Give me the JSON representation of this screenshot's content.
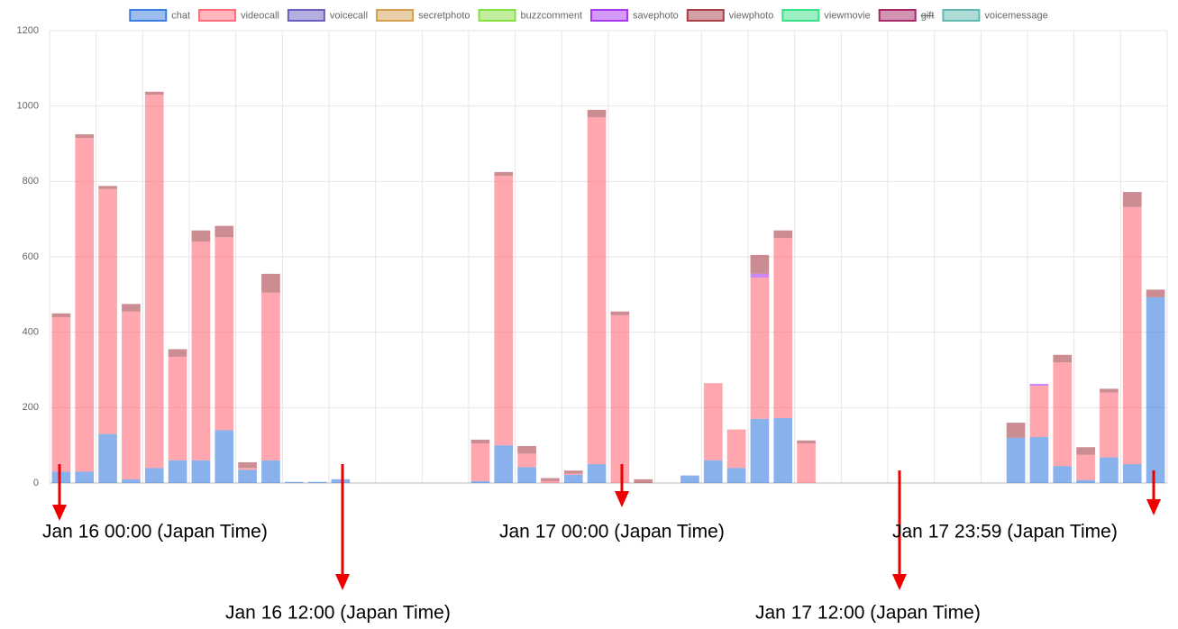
{
  "chart_data": {
    "type": "stacked_bar",
    "categories": [
      null,
      null,
      null,
      null,
      null,
      null,
      null,
      null,
      null,
      null,
      null,
      null,
      null,
      null,
      null,
      null,
      null,
      null,
      null,
      null,
      null,
      null,
      null,
      null,
      null,
      null,
      null,
      null,
      null,
      null,
      null,
      null,
      null,
      null,
      null,
      null,
      null,
      null,
      null,
      null,
      null,
      null,
      null,
      null,
      null,
      null,
      null,
      null
    ],
    "series": [
      {
        "name": "chat",
        "color": "#3b7de0",
        "values": [
          30,
          30,
          130,
          10,
          40,
          60,
          60,
          140,
          35,
          60,
          3,
          3,
          10,
          0,
          0,
          0,
          0,
          0,
          5,
          100,
          42,
          0,
          22,
          50,
          0,
          0,
          0,
          20,
          60,
          40,
          170,
          172,
          0,
          0,
          0,
          0,
          0,
          0,
          0,
          0,
          0,
          120,
          122,
          45,
          8,
          68,
          50,
          493
        ]
      },
      {
        "name": "videocall",
        "color": "#ff6b7a",
        "values": [
          410,
          885,
          650,
          445,
          990,
          275,
          580,
          512,
          5,
          445,
          0,
          0,
          0,
          0,
          0,
          0,
          0,
          0,
          100,
          715,
          36,
          5,
          3,
          920,
          445,
          0,
          0,
          0,
          205,
          102,
          375,
          478,
          105,
          0,
          0,
          0,
          0,
          0,
          0,
          0,
          0,
          0,
          136,
          275,
          67,
          172,
          682,
          0
        ]
      },
      {
        "name": "voicecall",
        "color": "#6a5fc0",
        "values": [
          0,
          0,
          0,
          0,
          0,
          0,
          0,
          0,
          0,
          0,
          0,
          0,
          0,
          0,
          0,
          0,
          0,
          0,
          0,
          0,
          0,
          0,
          0,
          0,
          0,
          0,
          0,
          0,
          0,
          0,
          0,
          0,
          0,
          0,
          0,
          0,
          0,
          0,
          0,
          0,
          0,
          0,
          0,
          0,
          0,
          0,
          0,
          0
        ]
      },
      {
        "name": "secretphoto",
        "color": "#d4a050",
        "values": [
          0,
          0,
          0,
          0,
          0,
          0,
          0,
          0,
          0,
          0,
          0,
          0,
          0,
          0,
          0,
          0,
          0,
          0,
          0,
          0,
          0,
          0,
          0,
          0,
          0,
          0,
          0,
          0,
          0,
          0,
          0,
          0,
          0,
          0,
          0,
          0,
          0,
          0,
          0,
          0,
          0,
          0,
          0,
          0,
          0,
          0,
          0,
          0
        ]
      },
      {
        "name": "buzzcomment",
        "color": "#86e040",
        "values": [
          0,
          0,
          0,
          0,
          0,
          0,
          0,
          0,
          0,
          0,
          0,
          0,
          0,
          0,
          0,
          0,
          0,
          0,
          0,
          0,
          0,
          0,
          0,
          0,
          0,
          0,
          0,
          0,
          0,
          0,
          0,
          0,
          0,
          0,
          0,
          0,
          0,
          0,
          0,
          0,
          0,
          0,
          0,
          0,
          0,
          0,
          0,
          0
        ]
      },
      {
        "name": "savephoto",
        "color": "#a838f0",
        "values": [
          0,
          0,
          0,
          0,
          0,
          0,
          0,
          0,
          0,
          0,
          0,
          0,
          0,
          0,
          0,
          0,
          0,
          0,
          0,
          0,
          0,
          0,
          0,
          0,
          0,
          0,
          0,
          0,
          0,
          0,
          10,
          0,
          0,
          0,
          0,
          0,
          0,
          0,
          0,
          0,
          0,
          0,
          5,
          0,
          0,
          0,
          0,
          0
        ]
      },
      {
        "name": "viewphoto",
        "color": "#a8404a",
        "values": [
          10,
          10,
          8,
          20,
          8,
          20,
          30,
          30,
          15,
          50,
          0,
          0,
          0,
          0,
          0,
          0,
          0,
          0,
          10,
          10,
          20,
          8,
          8,
          20,
          10,
          10,
          0,
          0,
          0,
          0,
          50,
          20,
          8,
          0,
          0,
          0,
          0,
          0,
          0,
          0,
          0,
          40,
          0,
          20,
          20,
          10,
          40,
          20
        ]
      },
      {
        "name": "viewmovie",
        "color": "#38e088",
        "values": [
          0,
          0,
          0,
          0,
          0,
          0,
          0,
          0,
          0,
          0,
          0,
          0,
          0,
          0,
          0,
          0,
          0,
          0,
          0,
          0,
          0,
          0,
          0,
          0,
          0,
          0,
          0,
          0,
          0,
          0,
          0,
          0,
          0,
          0,
          0,
          0,
          0,
          0,
          0,
          0,
          0,
          0,
          0,
          0,
          0,
          0,
          0,
          0
        ]
      },
      {
        "name": "gift",
        "color": "#a82868",
        "hidden": true,
        "values": [
          0,
          0,
          0,
          0,
          0,
          0,
          0,
          0,
          0,
          0,
          0,
          0,
          0,
          0,
          0,
          0,
          0,
          0,
          0,
          0,
          0,
          0,
          0,
          0,
          0,
          0,
          0,
          0,
          0,
          0,
          0,
          0,
          0,
          0,
          0,
          0,
          0,
          0,
          0,
          0,
          0,
          0,
          0,
          0,
          0,
          0,
          0,
          0
        ]
      },
      {
        "name": "voicemessage",
        "color": "#60b8b0",
        "values": [
          0,
          0,
          0,
          0,
          0,
          0,
          0,
          0,
          0,
          0,
          0,
          0,
          0,
          0,
          0,
          0,
          0,
          0,
          0,
          0,
          0,
          0,
          0,
          0,
          0,
          0,
          0,
          0,
          0,
          0,
          0,
          0,
          0,
          0,
          0,
          0,
          0,
          0,
          0,
          0,
          0,
          0,
          0,
          0,
          0,
          0,
          0,
          0
        ]
      }
    ],
    "ylim": [
      0,
      1200
    ],
    "yticks": [
      0,
      200,
      400,
      600,
      800,
      {
        "value": 1000,
        "label": "1000"
      },
      {
        "value": 1200,
        "label": "1200"
      }
    ],
    "grid": true,
    "legend": "top",
    "annotations": [
      "Jan 16 00:00 (Japan Time)",
      "Jan 16 12:00 (Japan Time)",
      "Jan 17 00:00 (Japan Time)",
      "Jan 17 12:00 (Japan Time)",
      "Jan 17 23:59 (Japan Time)"
    ]
  }
}
